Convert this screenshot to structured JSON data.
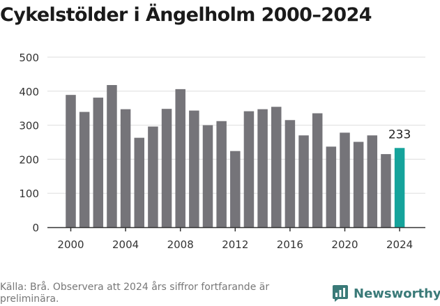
{
  "title": "Cykelstölder i Ängelholm 2000–2024",
  "source": "Källa: Brå. Observera att 2024 års siffror fortfarande är preliminära.",
  "brand": "Newsworthy",
  "colors": {
    "bar": "#757479",
    "highlight": "#15a39b",
    "grid": "#dddddd",
    "axis": "#333333",
    "brand": "#3a7a78"
  },
  "chart_data": {
    "type": "bar",
    "title": "Cykelstölder i Ängelholm 2000–2024",
    "xlabel": "",
    "ylabel": "",
    "ylim": [
      0,
      500
    ],
    "yticks": [
      0,
      100,
      200,
      300,
      400,
      500
    ],
    "xticks": [
      2000,
      2004,
      2008,
      2012,
      2016,
      2020,
      2024
    ],
    "grid": true,
    "categories": [
      2000,
      2001,
      2002,
      2003,
      2004,
      2005,
      2006,
      2007,
      2008,
      2009,
      2010,
      2011,
      2012,
      2013,
      2014,
      2015,
      2016,
      2017,
      2018,
      2019,
      2020,
      2021,
      2022,
      2023,
      2024
    ],
    "values": [
      389,
      339,
      381,
      418,
      347,
      263,
      296,
      348,
      406,
      343,
      300,
      312,
      224,
      341,
      347,
      354,
      315,
      270,
      335,
      237,
      278,
      251,
      270,
      215,
      233
    ],
    "highlight": {
      "category": 2024,
      "label": "233"
    }
  }
}
